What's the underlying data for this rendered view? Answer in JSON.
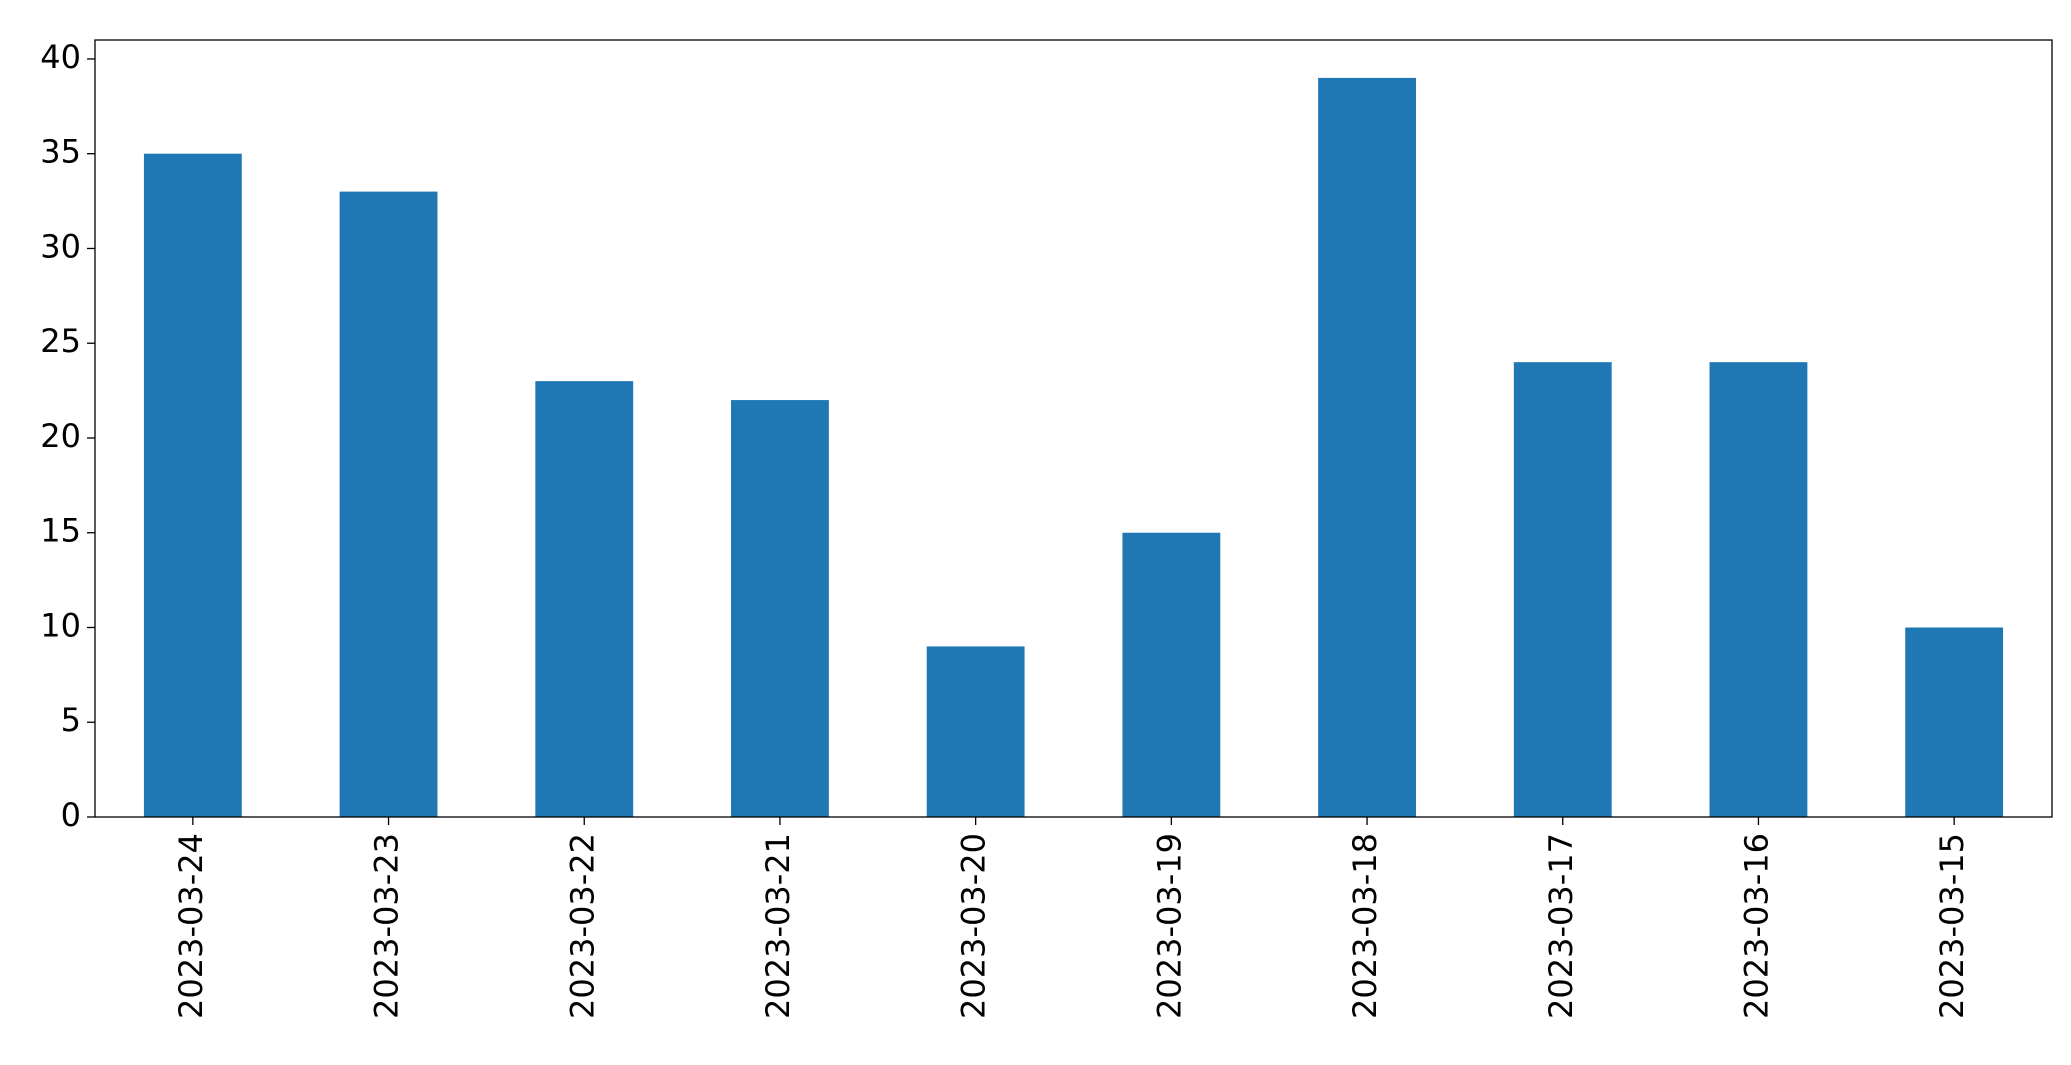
{
  "chart_data": {
    "type": "bar",
    "categories": [
      "2023-03-24",
      "2023-03-23",
      "2023-03-22",
      "2023-03-21",
      "2023-03-20",
      "2023-03-19",
      "2023-03-18",
      "2023-03-17",
      "2023-03-16",
      "2023-03-15"
    ],
    "values": [
      35,
      33,
      23,
      22,
      9,
      15,
      39,
      24,
      24,
      10
    ],
    "color": "#1f77b4",
    "ylim": [
      0,
      41
    ],
    "yticks": [
      0,
      5,
      10,
      15,
      20,
      25,
      30,
      35,
      40
    ],
    "grid": false
  }
}
